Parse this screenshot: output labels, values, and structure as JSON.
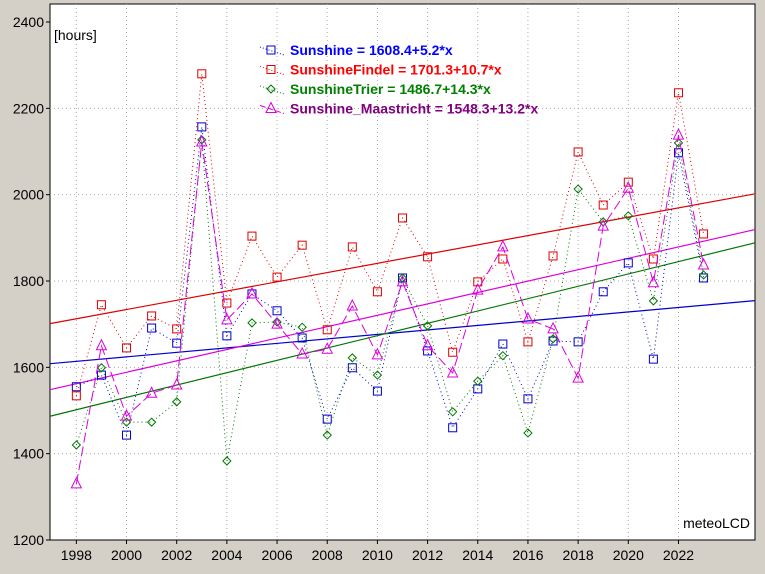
{
  "chart_data": {
    "type": "line",
    "ylabel": "[hours]",
    "watermark": "meteoLCD",
    "xlim": [
      1996.95,
      2025.05
    ],
    "ylim": [
      1200,
      2400
    ],
    "yticks": [
      1200,
      1400,
      1600,
      1800,
      2000,
      2200,
      2400
    ],
    "xticks": [
      1998,
      2000,
      2002,
      2004,
      2006,
      2008,
      2010,
      2012,
      2014,
      2016,
      2018,
      2020,
      2022
    ],
    "grid": true,
    "legend_position": "top-center",
    "x": [
      1998,
      1999,
      2000,
      2001,
      2002,
      2003,
      2004,
      2005,
      2006,
      2007,
      2008,
      2009,
      2010,
      2011,
      2012,
      2013,
      2014,
      2015,
      2016,
      2017,
      2018,
      2019,
      2020,
      2021,
      2022,
      2023
    ],
    "series": [
      {
        "name": "Sunshine = 1608.4+5.2*x",
        "color": "#0000cc",
        "text_color": "#0000ff",
        "marker": "square",
        "dash": "1,3",
        "trend": {
          "a": 1608.4,
          "b": 5.2
        },
        "values": [
          1555,
          1582,
          1443,
          1691,
          1656,
          2157,
          1673,
          1770,
          1731,
          1668,
          1480,
          1599,
          1545,
          1807,
          1638,
          1460,
          1550,
          1654,
          1527,
          1661,
          1659,
          1775,
          1842,
          1619,
          2097,
          1807
        ]
      },
      {
        "name": "SunshineFindel = 1701.3+10.7*x",
        "color": "#dd0000",
        "text_color": "#ff0000",
        "marker": "square",
        "dash": "1,3",
        "trend": {
          "a": 1701.3,
          "b": 10.7
        },
        "values": [
          1534,
          1745,
          1645,
          1719,
          1689,
          2280,
          1749,
          1904,
          1809,
          1883,
          1687,
          1879,
          1775,
          1946,
          1856,
          1635,
          1798,
          1851,
          1659,
          1858,
          2099,
          1976,
          2029,
          1851,
          2236,
          1909
        ]
      },
      {
        "name": "SunshineTrier = 1486.7+14.3*x",
        "color": "#007700",
        "text_color": "#008000",
        "marker": "diamond",
        "dash": "1,3",
        "trend": {
          "a": 1486.7,
          "b": 14.3
        },
        "values": [
          1420,
          1599,
          1473,
          1473,
          1520,
          2127,
          1383,
          1703,
          1705,
          1693,
          1443,
          1622,
          1582,
          1807,
          1696,
          1497,
          1568,
          1627,
          1448,
          1666,
          2013,
          1937,
          1951,
          1754,
          2120,
          1814
        ]
      },
      {
        "name": "Sunshine_Maastricht = 1548.3+13.2*x",
        "color": "#dd00dd",
        "text_color": "#800080",
        "marker": "triangle",
        "dash": "10,4",
        "trend": {
          "a": 1548.3,
          "b": 13.2
        },
        "values": [
          1330,
          1650,
          1487,
          1540,
          1559,
          2122,
          1710,
          1770,
          1700,
          1631,
          1642,
          1742,
          1629,
          1798,
          1650,
          1587,
          1779,
          1879,
          1712,
          1689,
          1575,
          1927,
          2015,
          1796,
          2138,
          1837
        ]
      }
    ]
  }
}
